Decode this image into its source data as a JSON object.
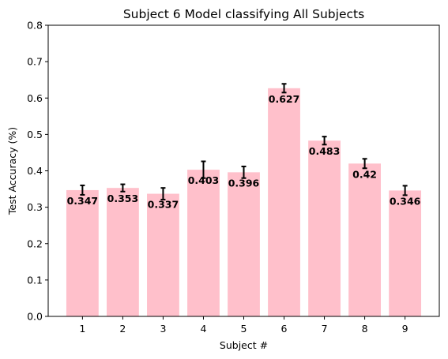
{
  "chart_data": {
    "type": "bar",
    "title": "Subject 6 Model classifying All Subjects",
    "xlabel": "Subject #",
    "ylabel": "Test Accuracy (%)",
    "categories": [
      "1",
      "2",
      "3",
      "4",
      "5",
      "6",
      "7",
      "8",
      "9"
    ],
    "values": [
      0.347,
      0.353,
      0.337,
      0.403,
      0.396,
      0.627,
      0.483,
      0.42,
      0.346
    ],
    "data_labels": [
      "0.347",
      "0.353",
      "0.337",
      "0.403",
      "0.396",
      "0.627",
      "0.483",
      "0.42",
      "0.346"
    ],
    "error": [
      0.013,
      0.01,
      0.016,
      0.023,
      0.016,
      0.012,
      0.011,
      0.013,
      0.013
    ],
    "ylim": [
      0.0,
      0.8
    ],
    "yticks": [
      "0.0",
      "0.1",
      "0.2",
      "0.3",
      "0.4",
      "0.5",
      "0.6",
      "0.7",
      "0.8"
    ],
    "grid": false,
    "bar_color": "#ffc0cb",
    "error_color": "#000000"
  }
}
